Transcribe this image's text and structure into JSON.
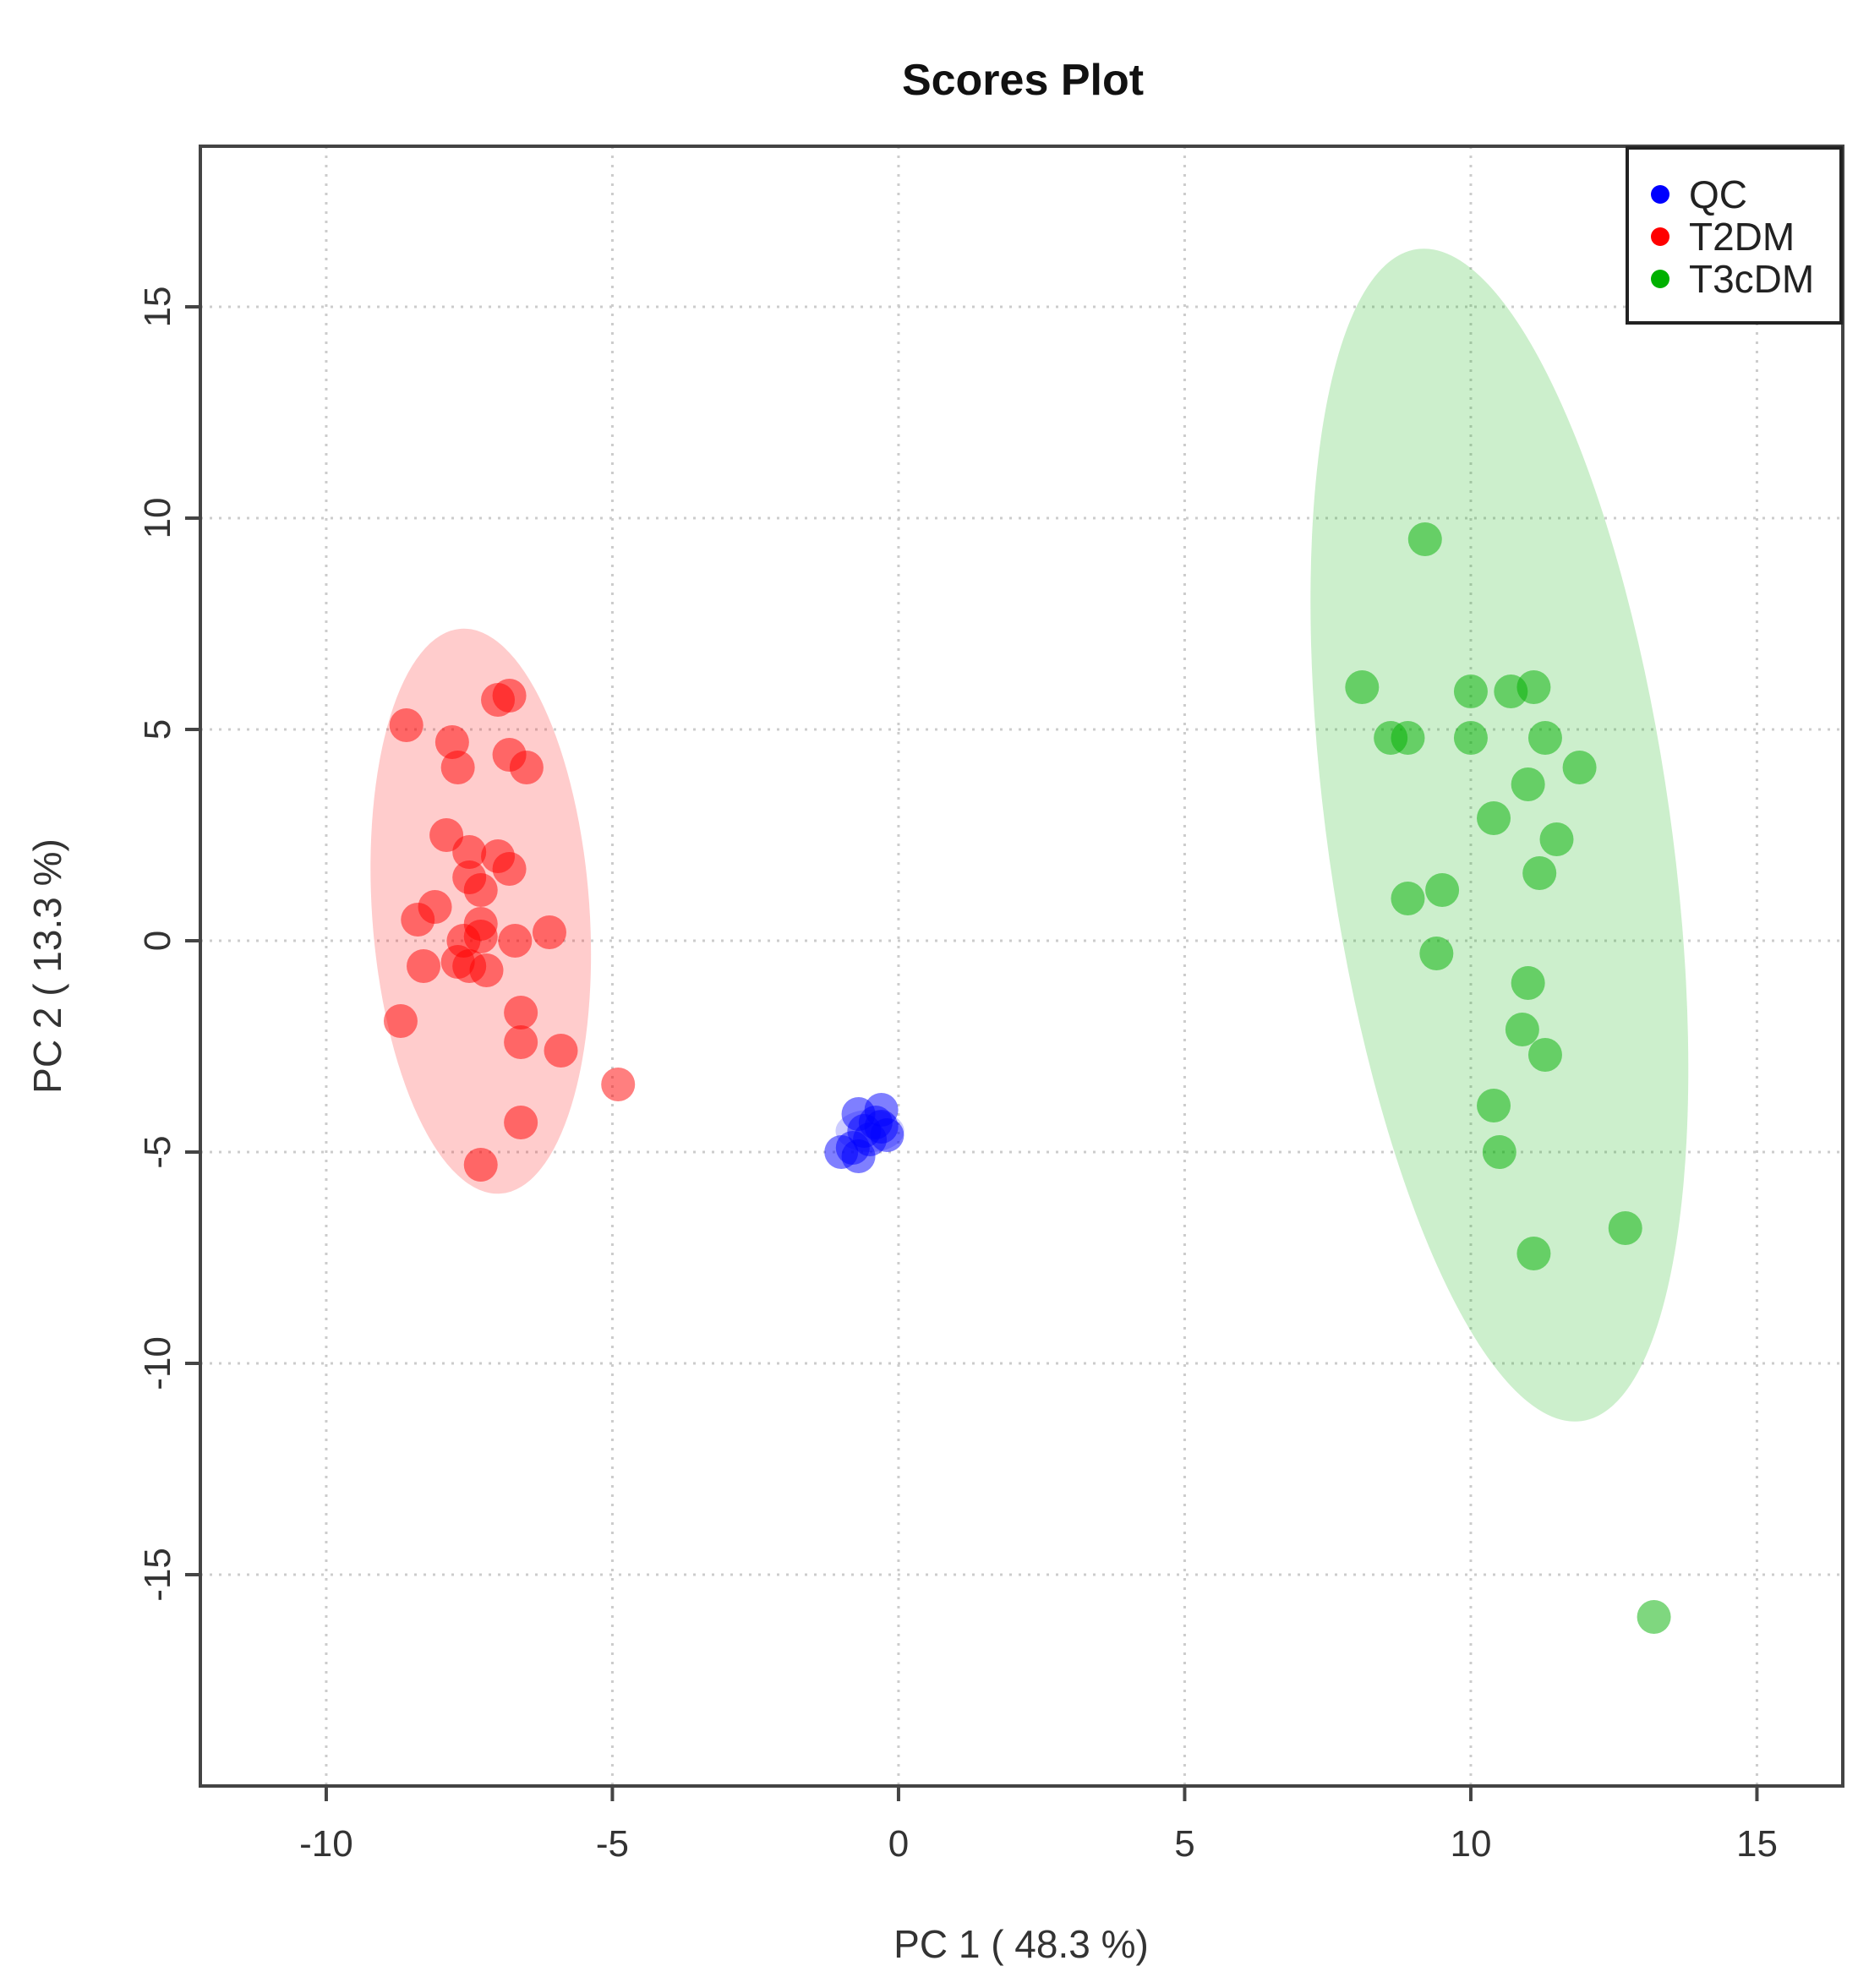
{
  "chart_data": {
    "type": "scatter",
    "title": "Scores Plot",
    "xlabel": "PC 1 ( 48.3 %)",
    "ylabel": "PC 2 ( 13.3 %)",
    "xlim": [
      -12.2,
      16.5
    ],
    "ylim": [
      -20,
      18.8
    ],
    "xticks": [
      -10,
      -5,
      0,
      5,
      10,
      15
    ],
    "yticks": [
      -15,
      -10,
      -5,
      0,
      5,
      10,
      15
    ],
    "grid": true,
    "legend_position": "top-right",
    "series": [
      {
        "name": "QC",
        "color": "#0000ff",
        "ellipse": {
          "cx": -0.5,
          "cy": -4.5,
          "rx": 0.6,
          "ry": 0.5,
          "angle": 0
        },
        "points": [
          [
            -1.0,
            -5.0
          ],
          [
            -0.8,
            -4.9
          ],
          [
            -0.7,
            -5.1
          ],
          [
            -0.6,
            -4.5
          ],
          [
            -0.5,
            -4.7
          ],
          [
            -0.4,
            -4.3
          ],
          [
            -0.3,
            -4.0
          ],
          [
            -0.2,
            -4.6
          ],
          [
            -0.7,
            -4.1
          ],
          [
            -0.3,
            -4.4
          ]
        ]
      },
      {
        "name": "T2DM",
        "color": "#ff0000",
        "ellipse": {
          "cx": -7.3,
          "cy": 0.7,
          "rx": 1.9,
          "ry": 6.7,
          "angle": -4
        },
        "points": [
          [
            -8.6,
            5.1
          ],
          [
            -7.0,
            5.7
          ],
          [
            -6.8,
            5.8
          ],
          [
            -7.8,
            4.7
          ],
          [
            -7.7,
            4.1
          ],
          [
            -6.8,
            4.4
          ],
          [
            -6.5,
            4.1
          ],
          [
            -7.9,
            2.5
          ],
          [
            -7.5,
            2.1
          ],
          [
            -7.5,
            1.5
          ],
          [
            -7.0,
            2.0
          ],
          [
            -6.8,
            1.7
          ],
          [
            -7.3,
            1.2
          ],
          [
            -8.1,
            0.8
          ],
          [
            -8.4,
            0.5
          ],
          [
            -7.6,
            0.0
          ],
          [
            -7.3,
            0.4
          ],
          [
            -7.3,
            0.1
          ],
          [
            -6.7,
            0.0
          ],
          [
            -6.1,
            0.2
          ],
          [
            -8.3,
            -0.6
          ],
          [
            -7.7,
            -0.5
          ],
          [
            -7.5,
            -0.6
          ],
          [
            -7.2,
            -0.7
          ],
          [
            -8.7,
            -1.9
          ],
          [
            -6.6,
            -1.7
          ],
          [
            -6.6,
            -2.4
          ],
          [
            -5.9,
            -2.6
          ],
          [
            -4.9,
            -3.4
          ],
          [
            -6.6,
            -4.3
          ],
          [
            -7.3,
            -5.3
          ]
        ]
      },
      {
        "name": "T3cDM",
        "color": "#00b000",
        "ellipse": {
          "cx": 10.5,
          "cy": 2.5,
          "rx": 3.0,
          "ry": 14.0,
          "angle": -8
        },
        "points": [
          [
            9.2,
            9.5
          ],
          [
            8.1,
            6.0
          ],
          [
            10.0,
            5.9
          ],
          [
            10.7,
            5.9
          ],
          [
            11.1,
            6.0
          ],
          [
            8.6,
            4.8
          ],
          [
            8.9,
            4.8
          ],
          [
            10.0,
            4.8
          ],
          [
            11.3,
            4.8
          ],
          [
            11.9,
            4.1
          ],
          [
            11.0,
            3.7
          ],
          [
            10.4,
            2.9
          ],
          [
            11.5,
            2.4
          ],
          [
            11.2,
            1.6
          ],
          [
            8.9,
            1.0
          ],
          [
            9.5,
            1.2
          ],
          [
            9.4,
            -0.3
          ],
          [
            11.0,
            -1.0
          ],
          [
            10.9,
            -2.1
          ],
          [
            11.3,
            -2.7
          ],
          [
            10.4,
            -3.9
          ],
          [
            10.5,
            -5.0
          ],
          [
            12.7,
            -6.8
          ],
          [
            11.1,
            -7.4
          ],
          [
            13.2,
            -16.0
          ]
        ]
      }
    ]
  }
}
